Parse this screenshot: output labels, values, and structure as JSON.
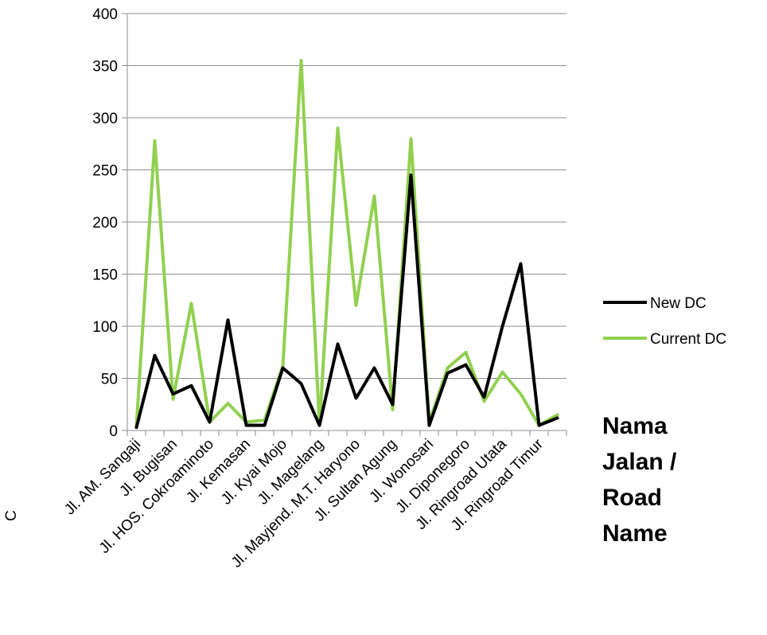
{
  "chart_data": {
    "type": "line",
    "categories": [
      "Jl. AM. Sangaji",
      "",
      "Jl. Bugisan",
      "",
      "Jl. HOS. Cokroaminoto",
      "",
      "Jl. Kemasan",
      "",
      "Jl. Kyai Mojo",
      "",
      "Jl. Magelang",
      "",
      "Jl. Mayjend. M.T. Haryono",
      "",
      "Jl. Sultan Agung",
      "",
      "Jl. Wonosari",
      "",
      "Jl. Diponegoro",
      "",
      "Jl. Ringroad Utata",
      "",
      "Jl. Ringroad Timur",
      ""
    ],
    "series": [
      {
        "name": "New DC",
        "color": "#000000",
        "values": [
          3,
          72,
          35,
          43,
          8,
          106,
          5,
          5,
          60,
          45,
          5,
          83,
          31,
          60,
          25,
          245,
          5,
          55,
          63,
          32,
          100,
          160,
          5,
          12
        ]
      },
      {
        "name": "Current DC",
        "color": "#92d050",
        "values": [
          5,
          278,
          30,
          122,
          8,
          26,
          8,
          10,
          62,
          355,
          5,
          290,
          120,
          225,
          20,
          280,
          8,
          60,
          75,
          28,
          56,
          35,
          5,
          15
        ]
      }
    ],
    "ylim": [
      0,
      400
    ],
    "yticks": [
      "0",
      "50",
      "100",
      "150",
      "200",
      "250",
      "300",
      "350",
      "400"
    ],
    "xlabel": "Nama\nJalan /\nRoad\nName",
    "xlabel_lines": [
      "Nama",
      "Jalan /",
      "Road",
      "Name"
    ],
    "ylabel_fragment": "C",
    "grid": true,
    "legend_position": "right"
  }
}
